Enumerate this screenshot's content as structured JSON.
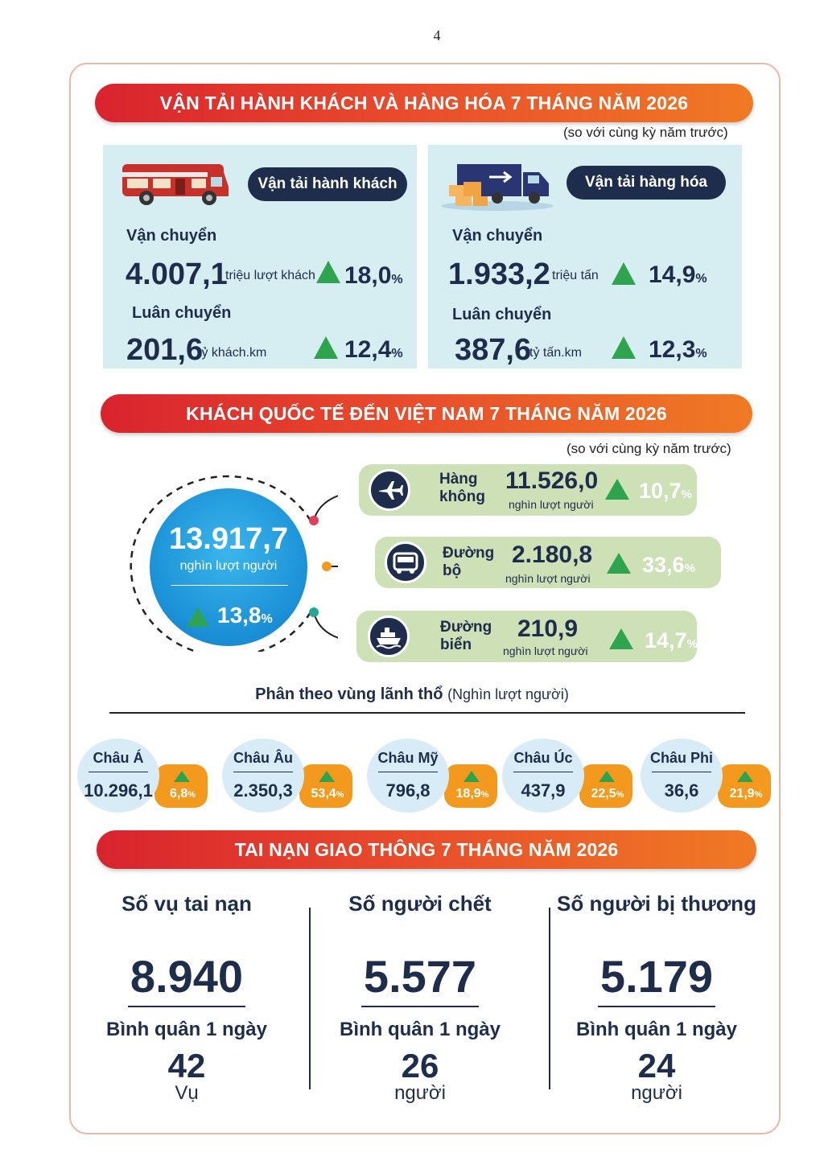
{
  "page_number": "4",
  "transport": {
    "title": "VẬN TẢI HÀNH KHÁCH VÀ HÀNG HÓA 7 THÁNG NĂM 2026",
    "note": "(so với cùng kỳ năm trước)",
    "passenger": {
      "label": "Vận tải hành khách",
      "transport_label": "Vận chuyển",
      "transport_value": "4.007,1",
      "transport_unit": "triệu lượt khách",
      "transport_pct": "18,0",
      "rotation_label": "Luân chuyển",
      "rotation_value": "201,6",
      "rotation_unit": "tỷ khách.km",
      "rotation_pct": "12,4"
    },
    "goods": {
      "label": "Vận tải hàng hóa",
      "transport_label": "Vận chuyển",
      "transport_value": "1.933,2",
      "transport_unit": "triệu tấn",
      "transport_pct": "14,9",
      "rotation_label": "Luân chuyển",
      "rotation_value": "387,6",
      "rotation_unit": "tỷ tấn.km",
      "rotation_pct": "12,3"
    },
    "percent_sign": "%"
  },
  "visitors": {
    "title": "KHÁCH QUỐC TẾ ĐẾN VIỆT NAM 7 THÁNG NĂM 2026",
    "note": "(so với cùng kỳ năm trước)",
    "total_value": "13.917,7",
    "total_unit": "nghìn lượt người",
    "total_pct": "13,8",
    "routes": [
      {
        "name_1": "Hàng",
        "name_2": "không",
        "value": "11.526,0",
        "unit": "nghìn lượt người",
        "pct": "10,7",
        "icon": "airplane-icon"
      },
      {
        "name_1": "Đường",
        "name_2": "bộ",
        "value": "2.180,8",
        "unit": "nghìn lượt người",
        "pct": "33,6",
        "icon": "bus-icon"
      },
      {
        "name_1": "Đường",
        "name_2": "biển",
        "value": "210,9",
        "unit": "nghìn lượt người",
        "pct": "14,7",
        "icon": "ship-icon"
      }
    ],
    "region_title": "Phân theo vùng lãnh thổ",
    "region_unit": "(Nghìn lượt người)",
    "regions": [
      {
        "name": "Châu Á",
        "value": "10.296,1",
        "pct": "6,8"
      },
      {
        "name": "Châu Âu",
        "value": "2.350,3",
        "pct": "53,4"
      },
      {
        "name": "Châu Mỹ",
        "value": "796,8",
        "pct": "18,9"
      },
      {
        "name": "Châu Úc",
        "value": "437,9",
        "pct": "22,5"
      },
      {
        "name": "Châu Phi",
        "value": "36,6",
        "pct": "21,9"
      }
    ],
    "colors": {
      "up": "#2ea44f",
      "route_bg": "#cde0b6",
      "badge": "#f39a1e"
    }
  },
  "accidents": {
    "title": "TAI NẠN GIAO THÔNG 7 THÁNG NĂM 2026",
    "avg_label": "Bình quân 1 ngày",
    "columns": [
      {
        "heading": "Số vụ tai nạn",
        "value": "8.940",
        "avg": "42",
        "unit": "Vụ"
      },
      {
        "heading": "Số người chết",
        "value": "5.577",
        "avg": "26",
        "unit": "người"
      },
      {
        "heading": "Số người bị thương",
        "value": "5.179",
        "avg": "24",
        "unit": "người"
      }
    ]
  },
  "colors": {
    "navy": "#1f2d4d",
    "banner_start": "#d9232e",
    "banner_end": "#f07a24",
    "panel": "#d6edf1"
  }
}
